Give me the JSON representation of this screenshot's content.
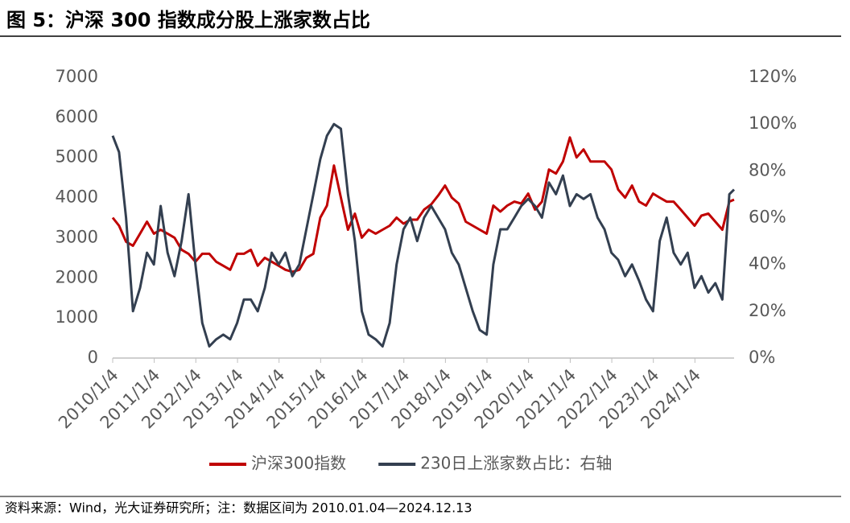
{
  "title": "图 5：沪深 300 指数成分股上涨家数占比",
  "source": "资料来源：Wind，光大证券研究所；注：数据区间为 2010.01.04—2024.12.13",
  "chart_data": {
    "type": "line",
    "x": [
      "2010-01-04",
      "2010-03-01",
      "2010-05-01",
      "2010-07-01",
      "2010-09-01",
      "2010-11-01",
      "2011-01-01",
      "2011-03-01",
      "2011-05-01",
      "2011-07-01",
      "2011-09-01",
      "2011-11-01",
      "2012-01-01",
      "2012-03-01",
      "2012-05-01",
      "2012-07-01",
      "2012-09-01",
      "2012-11-01",
      "2013-01-01",
      "2013-03-01",
      "2013-05-01",
      "2013-07-01",
      "2013-09-01",
      "2013-11-01",
      "2014-01-01",
      "2014-03-01",
      "2014-05-01",
      "2014-07-01",
      "2014-09-01",
      "2014-11-01",
      "2015-01-01",
      "2015-03-01",
      "2015-05-01",
      "2015-07-01",
      "2015-09-01",
      "2015-11-01",
      "2016-01-01",
      "2016-03-01",
      "2016-05-01",
      "2016-07-01",
      "2016-09-01",
      "2016-11-01",
      "2017-01-01",
      "2017-03-01",
      "2017-05-01",
      "2017-07-01",
      "2017-09-01",
      "2017-11-01",
      "2018-01-01",
      "2018-03-01",
      "2018-05-01",
      "2018-07-01",
      "2018-09-01",
      "2018-11-01",
      "2019-01-01",
      "2019-03-01",
      "2019-05-01",
      "2019-07-01",
      "2019-09-01",
      "2019-11-01",
      "2020-01-01",
      "2020-03-01",
      "2020-05-01",
      "2020-07-01",
      "2020-09-01",
      "2020-11-01",
      "2021-01-01",
      "2021-03-01",
      "2021-05-01",
      "2021-07-01",
      "2021-09-01",
      "2021-11-01",
      "2022-01-01",
      "2022-03-01",
      "2022-05-01",
      "2022-07-01",
      "2022-09-01",
      "2022-11-01",
      "2023-01-01",
      "2023-03-01",
      "2023-05-01",
      "2023-07-01",
      "2023-09-01",
      "2023-11-01",
      "2024-01-01",
      "2024-03-01",
      "2024-05-01",
      "2024-07-01",
      "2024-09-01",
      "2024-11-01",
      "2024-12-13"
    ],
    "series": [
      {
        "name": "沪深300指数",
        "color": "#c00000",
        "values": [
          3500,
          3300,
          2900,
          2800,
          3100,
          3400,
          3100,
          3200,
          3100,
          3000,
          2700,
          2600,
          2400,
          2600,
          2600,
          2400,
          2300,
          2200,
          2600,
          2600,
          2700,
          2300,
          2500,
          2400,
          2300,
          2200,
          2150,
          2200,
          2500,
          2600,
          3500,
          3800,
          4800,
          4000,
          3200,
          3600,
          3000,
          3200,
          3100,
          3200,
          3300,
          3500,
          3350,
          3450,
          3450,
          3700,
          3830,
          4050,
          4300,
          4000,
          3850,
          3400,
          3300,
          3200,
          3100,
          3800,
          3650,
          3800,
          3900,
          3850,
          4100,
          3700,
          3900,
          4700,
          4600,
          4900,
          5500,
          5000,
          5200,
          4900,
          4900,
          4900,
          4700,
          4200,
          4000,
          4300,
          3900,
          3800,
          4100,
          4000,
          3900,
          3900,
          3700,
          3500,
          3300,
          3550,
          3600,
          3400,
          3200,
          3900,
          3950
        ]
      },
      {
        "name": "230日上涨家数占比：右轴",
        "color": "#333f50",
        "axis": "y2",
        "values": [
          95,
          88,
          60,
          20,
          30,
          45,
          40,
          65,
          45,
          35,
          50,
          70,
          40,
          15,
          5,
          8,
          10,
          8,
          15,
          25,
          25,
          20,
          30,
          45,
          40,
          45,
          35,
          40,
          55,
          70,
          85,
          95,
          100,
          98,
          70,
          50,
          20,
          10,
          8,
          5,
          15,
          40,
          55,
          60,
          50,
          60,
          65,
          60,
          55,
          45,
          40,
          30,
          20,
          12,
          10,
          40,
          55,
          55,
          60,
          65,
          68,
          65,
          60,
          75,
          70,
          78,
          65,
          70,
          68,
          70,
          60,
          55,
          45,
          42,
          35,
          40,
          33,
          25,
          20,
          50,
          60,
          45,
          40,
          45,
          30,
          35,
          28,
          32,
          25,
          70,
          72
        ]
      }
    ],
    "xlim": [
      "2010-01-04",
      "2024-12-13"
    ],
    "xticks": [
      {
        "value": "2010-01-04",
        "label": "2010/1/4"
      },
      {
        "value": "2011-01-04",
        "label": "2011/1/4"
      },
      {
        "value": "2012-01-04",
        "label": "2012/1/4"
      },
      {
        "value": "2013-01-04",
        "label": "2013/1/4"
      },
      {
        "value": "2014-01-04",
        "label": "2014/1/4"
      },
      {
        "value": "2015-01-04",
        "label": "2015/1/4"
      },
      {
        "value": "2016-01-04",
        "label": "2016/1/4"
      },
      {
        "value": "2017-01-04",
        "label": "2017/1/4"
      },
      {
        "value": "2018-01-04",
        "label": "2018/1/4"
      },
      {
        "value": "2019-01-04",
        "label": "2019/1/4"
      },
      {
        "value": "2020-01-04",
        "label": "2020/1/4"
      },
      {
        "value": "2021-01-04",
        "label": "2021/1/4"
      },
      {
        "value": "2022-01-04",
        "label": "2022/1/4"
      },
      {
        "value": "2023-01-04",
        "label": "2023/1/4"
      },
      {
        "value": "2024-01-04",
        "label": "2024/1/4"
      }
    ],
    "ylim": [
      0,
      7000
    ],
    "yticks": [
      0,
      1000,
      2000,
      3000,
      4000,
      5000,
      6000,
      7000
    ],
    "y2lim": [
      0,
      120
    ],
    "y2ticks": [
      {
        "value": 0,
        "label": "0%"
      },
      {
        "value": 20,
        "label": "20%"
      },
      {
        "value": 40,
        "label": "40%"
      },
      {
        "value": 60,
        "label": "60%"
      },
      {
        "value": 80,
        "label": "80%"
      },
      {
        "value": 100,
        "label": "100%"
      },
      {
        "value": 120,
        "label": "120%"
      }
    ],
    "legend": "bottom"
  }
}
